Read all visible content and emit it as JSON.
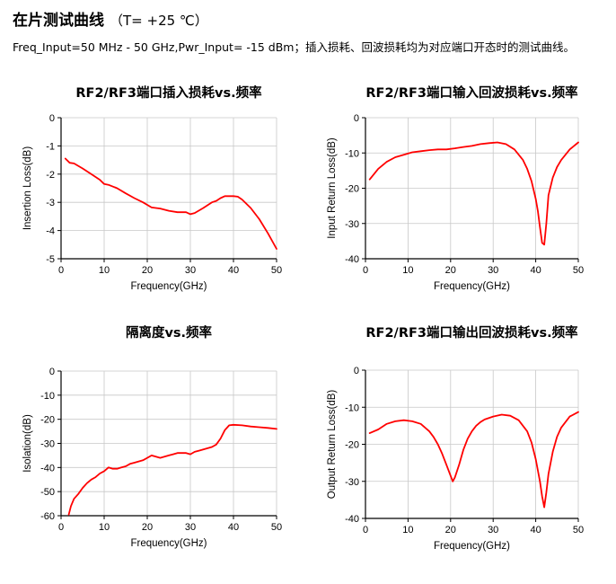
{
  "header": {
    "title": "在片测试曲线",
    "temperature": "（T= +25 ℃）",
    "subtitle": "Freq_Input=50 MHz - 50 GHz,Pwr_Input= -15 dBm；插入损耗、回波损耗均为对应端口开态时的测试曲线。"
  },
  "colors": {
    "trace": "#ff0000",
    "axis": "#000000",
    "grid": "#c8c8c8"
  },
  "chart_data": [
    {
      "type": "line",
      "title": "RF2/RF3端口插入损耗vs.频率",
      "xlabel": "Frequency(GHz)",
      "ylabel": "Insertion Loss(dB)",
      "xlim": [
        0,
        50
      ],
      "ylim": [
        -5,
        0
      ],
      "xticks": [
        0,
        10,
        20,
        30,
        40,
        50
      ],
      "yticks": [
        0,
        -1,
        -2,
        -3,
        -4,
        -5
      ],
      "grid": true,
      "series": [
        {
          "x": [
            1,
            2,
            3,
            5,
            7,
            9,
            10,
            11,
            13,
            15,
            17,
            19,
            21,
            23,
            25,
            27,
            29,
            30,
            31,
            33,
            35,
            36,
            37,
            38,
            39,
            40,
            41,
            42,
            44,
            46,
            48,
            50
          ],
          "y": [
            -1.45,
            -1.6,
            -1.62,
            -1.8,
            -2.0,
            -2.2,
            -2.35,
            -2.38,
            -2.5,
            -2.68,
            -2.85,
            -3.0,
            -3.18,
            -3.22,
            -3.3,
            -3.35,
            -3.35,
            -3.42,
            -3.38,
            -3.2,
            -3.0,
            -2.95,
            -2.85,
            -2.78,
            -2.78,
            -2.78,
            -2.8,
            -2.9,
            -3.2,
            -3.6,
            -4.1,
            -4.65
          ]
        }
      ]
    },
    {
      "type": "line",
      "title": "RF2/RF3端口输入回波损耗vs.频率",
      "xlabel": "Frequency(GHz)",
      "ylabel": "Input Return Loss(dB)",
      "xlim": [
        0,
        50
      ],
      "ylim": [
        -40,
        0
      ],
      "xticks": [
        0,
        10,
        20,
        30,
        40,
        50
      ],
      "yticks": [
        0,
        -10,
        -20,
        -30,
        -40
      ],
      "grid": true,
      "series": [
        {
          "x": [
            1,
            3,
            5,
            7,
            9,
            11,
            13,
            15,
            17,
            19,
            21,
            23,
            25,
            27,
            29,
            31,
            33,
            35,
            37,
            38,
            39,
            40,
            40.5,
            41,
            41.5,
            42,
            42.5,
            43,
            44,
            45,
            46,
            48,
            50
          ],
          "y": [
            -17.5,
            -14.5,
            -12.5,
            -11.2,
            -10.5,
            -9.8,
            -9.5,
            -9.2,
            -9.0,
            -9.0,
            -8.7,
            -8.3,
            -8.0,
            -7.5,
            -7.2,
            -7.0,
            -7.5,
            -9.0,
            -12.0,
            -14.5,
            -18.0,
            -23.0,
            -26.5,
            -31.0,
            -35.5,
            -36.0,
            -30.0,
            -22.0,
            -17.0,
            -14.0,
            -12.0,
            -9.0,
            -7.0
          ]
        }
      ]
    },
    {
      "type": "line",
      "title": "隔离度vs.频率",
      "xlabel": "Frequency(GHz)",
      "ylabel": "Isolation(dB)",
      "xlim": [
        0,
        50
      ],
      "ylim": [
        -60,
        0
      ],
      "xticks": [
        0,
        10,
        20,
        30,
        40,
        50
      ],
      "yticks": [
        0,
        -10,
        -20,
        -30,
        -40,
        -50,
        -60
      ],
      "grid": true,
      "series": [
        {
          "x": [
            1.8,
            2.3,
            3,
            4,
            5,
            6,
            7,
            8,
            9,
            10,
            11,
            12,
            13,
            14,
            15,
            16,
            17,
            18,
            19,
            20,
            21,
            22,
            23,
            24,
            25,
            26,
            27,
            28,
            29,
            30,
            31,
            32,
            33,
            34,
            35,
            36,
            37,
            38,
            39,
            40,
            42,
            44,
            46,
            48,
            50
          ],
          "y": [
            -59.5,
            -56.0,
            -53.0,
            -51.0,
            -48.5,
            -46.5,
            -45.0,
            -44.0,
            -42.5,
            -41.5,
            -40.0,
            -40.5,
            -40.5,
            -40.0,
            -39.5,
            -38.5,
            -38.0,
            -37.5,
            -37.0,
            -36.0,
            -35.0,
            -35.5,
            -36.0,
            -35.5,
            -35.0,
            -34.5,
            -34.0,
            -34.0,
            -34.0,
            -34.5,
            -33.5,
            -33.0,
            -32.5,
            -32.0,
            -31.5,
            -30.5,
            -28.0,
            -24.5,
            -22.5,
            -22.3,
            -22.5,
            -23.0,
            -23.3,
            -23.6,
            -24.0
          ]
        }
      ]
    },
    {
      "type": "line",
      "title": "RF2/RF3端口输出回波损耗vs.频率",
      "xlabel": "Frequency(GHz)",
      "ylabel": "Output Return Loss(dB)",
      "xlim": [
        0,
        50
      ],
      "ylim": [
        -40,
        0
      ],
      "xticks": [
        0,
        10,
        20,
        30,
        40,
        50
      ],
      "yticks": [
        0,
        -10,
        -20,
        -30,
        -40
      ],
      "grid": true,
      "series": [
        {
          "x": [
            1,
            3,
            5,
            7,
            9,
            11,
            13,
            15,
            16,
            17,
            18,
            19,
            20,
            20.5,
            21,
            22,
            23,
            24,
            25,
            26,
            27,
            28,
            30,
            32,
            34,
            36,
            38,
            39,
            40,
            41,
            41.5,
            42,
            42.5,
            43,
            44,
            45,
            46,
            48,
            50
          ],
          "y": [
            -17.0,
            -16.0,
            -14.5,
            -13.8,
            -13.5,
            -13.8,
            -14.5,
            -16.5,
            -18.0,
            -20.0,
            -22.5,
            -25.5,
            -28.5,
            -30.0,
            -29.0,
            -25.5,
            -21.5,
            -18.5,
            -16.5,
            -15.0,
            -14.0,
            -13.3,
            -12.5,
            -12.0,
            -12.3,
            -13.5,
            -16.5,
            -19.5,
            -24.0,
            -30.0,
            -34.0,
            -37.0,
            -33.0,
            -28.0,
            -22.0,
            -18.0,
            -15.5,
            -12.5,
            -11.3
          ]
        }
      ]
    }
  ]
}
